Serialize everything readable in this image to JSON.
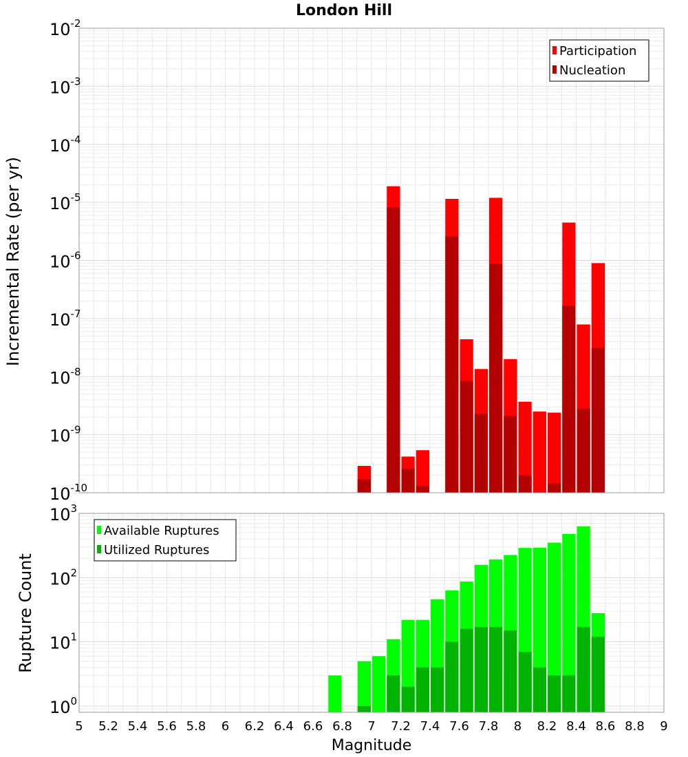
{
  "chart_data": [
    {
      "type": "bar",
      "title": "London Hill",
      "ylabel": "Incremental Rate (per yr)",
      "xlabel": "",
      "yscale": "log",
      "ylim": [
        1e-10,
        0.01
      ],
      "xlim": [
        5,
        9
      ],
      "legend_position": "top-right",
      "y_tick_labels": [
        {
          "base": "10",
          "exp": "-10"
        },
        {
          "base": "10",
          "exp": "-9"
        },
        {
          "base": "10",
          "exp": "-8"
        },
        {
          "base": "10",
          "exp": "-7"
        },
        {
          "base": "10",
          "exp": "-6"
        },
        {
          "base": "10",
          "exp": "-5"
        },
        {
          "base": "10",
          "exp": "-4"
        },
        {
          "base": "10",
          "exp": "-3"
        },
        {
          "base": "10",
          "exp": "-2"
        }
      ],
      "series": [
        {
          "name": "Participation",
          "color": "#ff0000",
          "x": [
            6.95,
            7.15,
            7.25,
            7.35,
            7.55,
            7.65,
            7.75,
            7.85,
            7.95,
            8.05,
            8.15,
            8.25,
            8.35,
            8.45,
            8.55
          ],
          "values": [
            2.9e-10,
            1.9e-05,
            4.2e-10,
            5.4e-10,
            1.15e-05,
            4.4e-08,
            1.35e-08,
            1.2e-05,
            2e-08,
            3.7e-09,
            2.5e-09,
            2.4e-09,
            4.5e-06,
            7.9e-08,
            9e-07
          ]
        },
        {
          "name": "Nucleation",
          "color": "#b30000",
          "x": [
            6.95,
            7.15,
            7.25,
            7.35,
            7.55,
            7.65,
            7.75,
            7.85,
            7.95,
            8.05,
            8.15,
            8.25,
            8.35,
            8.45,
            8.55
          ],
          "values": [
            1.7e-10,
            8.2e-06,
            2.6e-10,
            1.3e-10,
            2.6e-06,
            8.4e-09,
            2.3e-09,
            8.7e-07,
            2.1e-09,
            2e-10,
            1e-10,
            1.45e-10,
            1.65e-07,
            2.8e-09,
            3.1e-08
          ]
        }
      ]
    },
    {
      "type": "bar",
      "title": "",
      "ylabel": "Rupture Count",
      "xlabel": "Magnitude",
      "yscale": "log",
      "ylim": [
        0.8,
        1000
      ],
      "xlim": [
        5,
        9
      ],
      "legend_position": "top-left",
      "y_tick_labels": [
        {
          "base": "10",
          "exp": "0"
        },
        {
          "base": "10",
          "exp": "1"
        },
        {
          "base": "10",
          "exp": "2"
        },
        {
          "base": "10",
          "exp": "3"
        }
      ],
      "x_tick_labels": [
        "5",
        "5.2",
        "5.4",
        "5.6",
        "5.8",
        "6",
        "6.2",
        "6.4",
        "6.6",
        "6.8",
        "7",
        "7.2",
        "7.4",
        "7.6",
        "7.8",
        "8",
        "8.2",
        "8.4",
        "8.6",
        "8.8",
        "9"
      ],
      "series": [
        {
          "name": "Available Ruptures",
          "color": "#00ff00",
          "x": [
            6.75,
            6.95,
            7.05,
            7.15,
            7.25,
            7.35,
            7.45,
            7.55,
            7.65,
            7.75,
            7.85,
            7.95,
            8.05,
            8.15,
            8.25,
            8.35,
            8.45,
            8.55
          ],
          "values": [
            3,
            5,
            6,
            11,
            22,
            22,
            46,
            63,
            87,
            158,
            192,
            225,
            290,
            293,
            350,
            480,
            630,
            28
          ]
        },
        {
          "name": "Utilized Ruptures",
          "color": "#00b300",
          "x": [
            6.95,
            7.15,
            7.25,
            7.35,
            7.45,
            7.55,
            7.65,
            7.75,
            7.85,
            7.95,
            8.05,
            8.15,
            8.25,
            8.35,
            8.45,
            8.55
          ],
          "values": [
            1,
            3,
            2,
            4,
            4,
            10,
            16,
            17,
            17,
            15,
            7,
            4,
            3,
            3,
            17,
            12
          ]
        }
      ]
    }
  ]
}
